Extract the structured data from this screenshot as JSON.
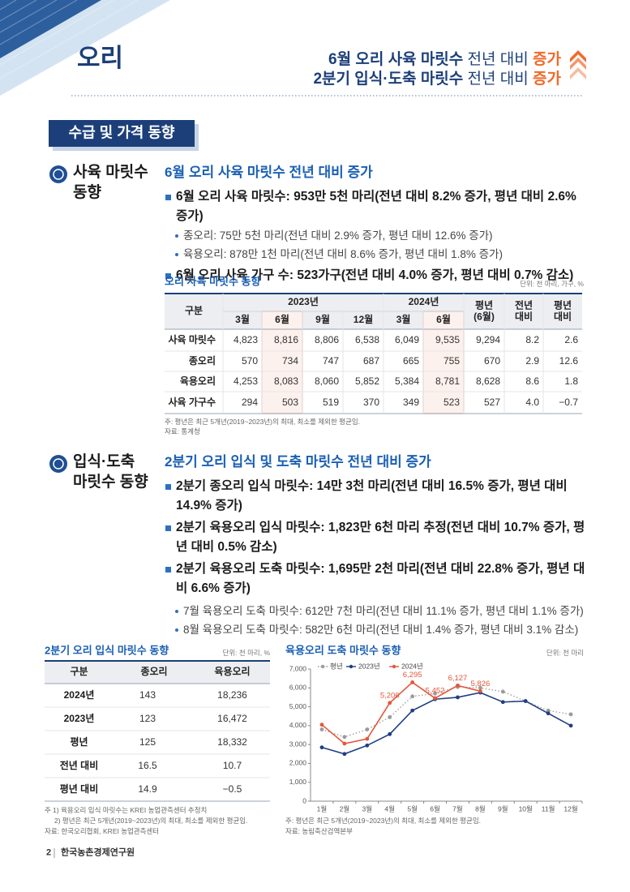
{
  "header": {
    "title": "오리",
    "headlines": [
      [
        "6월 오리 사육 마릿수",
        "전년 대비",
        "증가"
      ],
      [
        "2분기 입식·도축 마릿수",
        "전년 대비",
        "증가"
      ]
    ]
  },
  "section_tab": "수급 및 가격 동향",
  "sections": [
    {
      "title": [
        "사육 마릿수",
        "동향"
      ],
      "heading": "6월 오리 사육 마릿수 전년 대비 증가",
      "bullets": [
        {
          "text": "6월 오리 사육 마릿수: 953만 5천 마리(전년 대비 8.2% 증가, 평년 대비 2.6% 증가)",
          "sub": [
            "종오리: 75만 5천 마리(전년 대비 2.9% 증가, 평년 대비 12.6% 증가)",
            "육용오리: 878만 1천 마리(전년 대비 8.6% 증가, 평년 대비 1.8% 증가)"
          ]
        },
        {
          "text": "6월 오리 사육 가구 수: 523가구(전년 대비 4.0% 증가, 평년 대비 0.7% 감소)"
        }
      ]
    },
    {
      "title": [
        "입식·도축",
        "마릿수 동향"
      ],
      "heading": "2분기 오리 입식 및 도축 마릿수 전년 대비 증가",
      "bullets": [
        {
          "text": "2분기 종오리 입식 마릿수: 14만 3천 마리(전년 대비 16.5% 증가, 평년 대비 14.9% 증가)"
        },
        {
          "text": "2분기 육용오리 입식 마릿수: 1,823만 6천 마리 추정(전년 대비 10.7% 증가, 평년 대비 0.5% 감소)"
        },
        {
          "text": "2분기 육용오리 도축 마릿수: 1,695만 2천 마리(전년 대비 22.8% 증가, 평년 대비 6.6% 증가)",
          "sub": [
            "7월 육용오리 도축 마릿수: 612만 7천 마리(전년 대비 11.1% 증가, 평년 대비 1.1% 증가)",
            "8월 육용오리 도축 마릿수: 582만 6천 마리(전년 대비 1.4% 증가, 평년 대비 3.1% 감소)"
          ]
        }
      ]
    }
  ],
  "stock_table": {
    "title": "오리 사육 마릿수 동향",
    "unit": "단위: 천 마리, 가구, %",
    "header": {
      "group": "구분",
      "years": [
        "2023년",
        "2024년"
      ],
      "months": [
        "3월",
        "6월",
        "9월",
        "12월",
        "3월",
        "6월"
      ],
      "extra": [
        "평년\n(6월)",
        "전년\n대비",
        "평년\n대비"
      ]
    },
    "rows": [
      [
        "사육 마릿수",
        "4,823",
        "8,816",
        "8,806",
        "6,538",
        "6,049",
        "9,535",
        "9,294",
        "8.2",
        "2.6"
      ],
      [
        "종오리",
        "570",
        "734",
        "747",
        "687",
        "665",
        "755",
        "670",
        "2.9",
        "12.6"
      ],
      [
        "육용오리",
        "4,253",
        "8,083",
        "8,060",
        "5,852",
        "5,384",
        "8,781",
        "8,628",
        "8.6",
        "1.8"
      ],
      [
        "사육 가구수",
        "294",
        "503",
        "519",
        "370",
        "349",
        "523",
        "527",
        "4.0",
        "−0.7"
      ]
    ],
    "notes": [
      "주: 평년은 최근 5개년(2019~2023년)의 최대, 최소를 제외한 평균임.",
      "자료: 통계청"
    ]
  },
  "intake_table": {
    "title": "2분기 오리 입식 마릿수 동향",
    "unit": "단위: 천 마리, %",
    "header": [
      "구분",
      "종오리",
      "육용오리"
    ],
    "rows": [
      [
        "2024년",
        "143",
        "18,236"
      ],
      [
        "2023년",
        "123",
        "16,472"
      ],
      [
        "평년",
        "125",
        "18,332"
      ],
      [
        "전년 대비",
        "16.5",
        "10.7"
      ],
      [
        "평년 대비",
        "14.9",
        "−0.5"
      ]
    ],
    "notes": [
      "주 1) 육용오리 입식 마릿수는 KREI 농업관측센터 추정치",
      "2) 평년은 최근 5개년(2019~2023년)의 최대, 최소를 제외한 평균임.",
      "자료: 한국오리협회, KREI 농업관측센터"
    ]
  },
  "chart_data": {
    "type": "line",
    "title": "육용오리 도축 마릿수 동향",
    "unit": "단위: 천 마리",
    "categories": [
      "1월",
      "2월",
      "3월",
      "4월",
      "5월",
      "6월",
      "7월",
      "8월",
      "9월",
      "10월",
      "11월",
      "12월"
    ],
    "series": [
      {
        "name": "평년",
        "color": "#9a9a9a",
        "dashed": true,
        "values": [
          3800,
          3400,
          3800,
          4450,
          5550,
          5700,
          6050,
          6000,
          5800,
          5300,
          4800,
          4600
        ]
      },
      {
        "name": "2023년",
        "color": "#1f3f82",
        "values": [
          2850,
          2500,
          2950,
          3550,
          4800,
          5400,
          5500,
          5750,
          5250,
          5300,
          4650,
          4000
        ]
      },
      {
        "name": "2024년",
        "color": "#e2583a",
        "values": [
          4050,
          3050,
          3300,
          5206,
          6295,
          5452,
          6127,
          5826,
          null,
          null,
          null,
          null
        ],
        "value_labels": [
          null,
          null,
          null,
          "5,206",
          "6,295",
          "5,452",
          "6,127",
          "5,826",
          null,
          null,
          null,
          null
        ]
      }
    ],
    "ylim": [
      0,
      7000
    ],
    "yticks": [
      0,
      {
        "value": 1000,
        "label": "1,000"
      },
      {
        "value": 2000,
        "label": "2,000"
      },
      {
        "value": 3000,
        "label": "3,000"
      },
      {
        "value": 4000,
        "label": "4,000"
      },
      {
        "value": 5000,
        "label": "5,000"
      },
      {
        "value": 6000,
        "label": "6,000"
      },
      {
        "value": 7000,
        "label": "7,000"
      }
    ],
    "grid": false,
    "legend": "top",
    "notes": [
      "주: 평년은 최근 5개년(2019~2023년)의 최대, 최소를 제외한 평균임.",
      "자료: 농림축산검역본부"
    ]
  },
  "footer": {
    "page": "2",
    "org": "한국농촌경제연구원"
  }
}
